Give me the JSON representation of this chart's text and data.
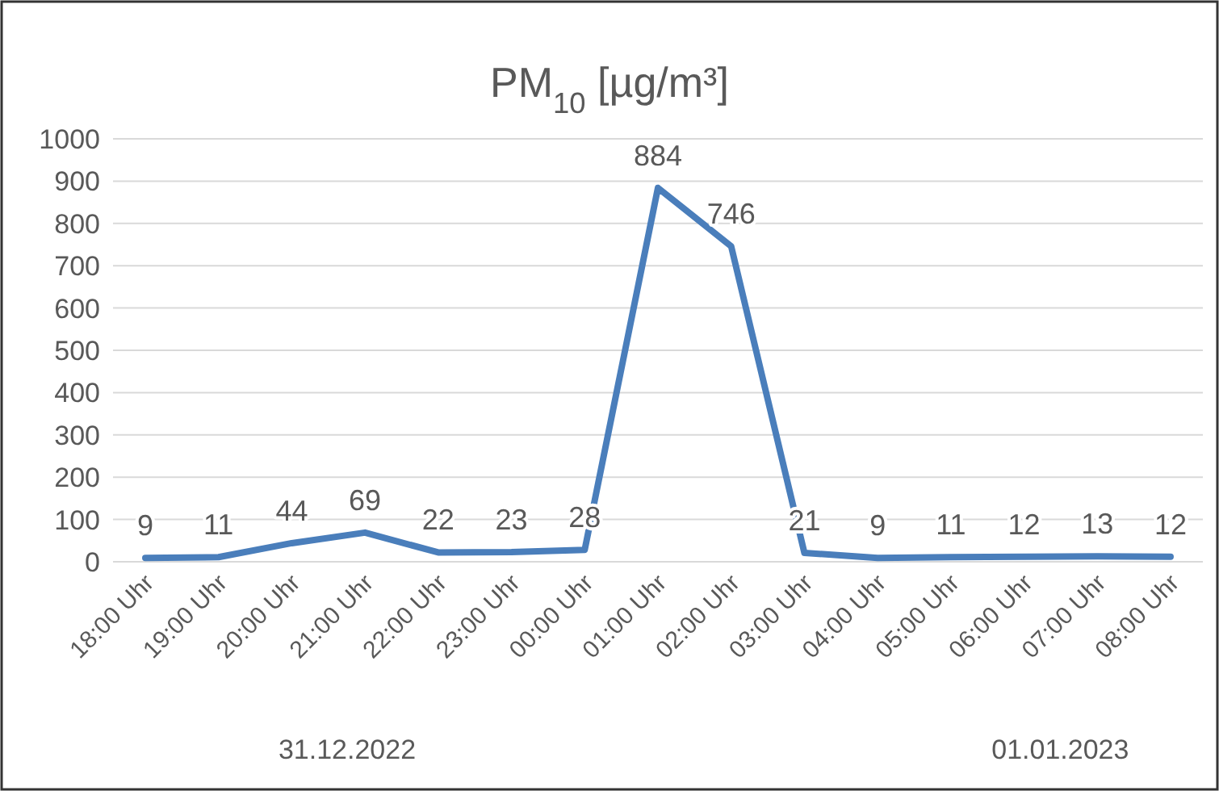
{
  "chart_data": {
    "type": "line",
    "title": "PM$_{10}$ [µg/m³]",
    "categories": [
      "18:00 Uhr",
      "19:00 Uhr",
      "20:00 Uhr",
      "21:00 Uhr",
      "22:00 Uhr",
      "23:00 Uhr",
      "00:00 Uhr",
      "01:00 Uhr",
      "02:00 Uhr",
      "03:00 Uhr",
      "04:00 Uhr",
      "05:00 Uhr",
      "06:00 Uhr",
      "07:00 Uhr",
      "08:00 Uhr"
    ],
    "series": [
      {
        "color": "#4a7ebb",
        "values": [
          9,
          11,
          44,
          69,
          22,
          23,
          28,
          884,
          746,
          21,
          9,
          11,
          12,
          13,
          12
        ]
      }
    ],
    "ylim": [
      0,
      1000
    ],
    "yticks": [
      0,
      100,
      200,
      300,
      400,
      500,
      600,
      700,
      800,
      900,
      1000
    ],
    "grid": "y",
    "data_labels": true,
    "marker": "none",
    "line_style": "solid",
    "annotations": [
      "31.12.2022",
      "01.01.2023"
    ]
  }
}
